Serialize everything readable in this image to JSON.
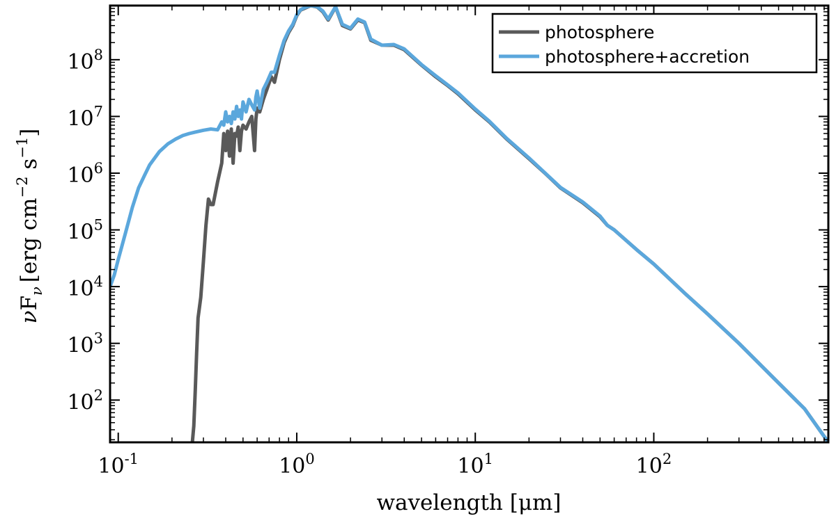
{
  "chart_data": {
    "type": "line",
    "title": "",
    "xlabel": "wavelength [μm]",
    "ylabel": "νF_ν [erg cm^-2 s^-1]",
    "xscale": "log",
    "yscale": "log",
    "xlim": [
      0.09,
      950
    ],
    "ylim": [
      18,
      900000000
    ],
    "xticks": [
      {
        "value": 0.1,
        "base": "10",
        "exp": "-1"
      },
      {
        "value": 1,
        "base": "10",
        "exp": "0"
      },
      {
        "value": 10,
        "base": "10",
        "exp": "1"
      },
      {
        "value": 100,
        "base": "10",
        "exp": "2"
      }
    ],
    "yticks": [
      {
        "value": 100,
        "base": "10",
        "exp": "2"
      },
      {
        "value": 1000,
        "base": "10",
        "exp": "3"
      },
      {
        "value": 10000,
        "base": "10",
        "exp": "4"
      },
      {
        "value": 100000,
        "base": "10",
        "exp": "5"
      },
      {
        "value": 1000000,
        "base": "10",
        "exp": "6"
      },
      {
        "value": 10000000,
        "base": "10",
        "exp": "7"
      },
      {
        "value": 100000000,
        "base": "10",
        "exp": "8"
      }
    ],
    "ylabel_parts": {
      "nu": "ν",
      "F": "F",
      "sub": "ν",
      "bracket_open": "[erg cm",
      "exp1": "−2",
      "s": " s",
      "exp2": "−1",
      "bracket_close": "]"
    },
    "legend_position": "top-right",
    "series": [
      {
        "name": "photosphere",
        "color": "#595959",
        "x": [
          0.26,
          0.265,
          0.27,
          0.275,
          0.28,
          0.29,
          0.3,
          0.31,
          0.32,
          0.33,
          0.34,
          0.36,
          0.38,
          0.39,
          0.4,
          0.41,
          0.42,
          0.43,
          0.44,
          0.45,
          0.46,
          0.47,
          0.48,
          0.49,
          0.5,
          0.52,
          0.54,
          0.56,
          0.58,
          0.59,
          0.6,
          0.62,
          0.65,
          0.68,
          0.72,
          0.75,
          0.8,
          0.85,
          0.9,
          0.95,
          1.0,
          1.05,
          1.1,
          1.2,
          1.3,
          1.4,
          1.5,
          1.65,
          1.8,
          2.0,
          2.2,
          2.4,
          2.6,
          3.0,
          3.5,
          4.0,
          5.0,
          6.0,
          7.0,
          8.0,
          10,
          12,
          15,
          20,
          25,
          30,
          40,
          50,
          55,
          60,
          80,
          100,
          150,
          200,
          300,
          500,
          700,
          950
        ],
        "y": [
          18,
          35,
          150,
          700,
          2800,
          6500,
          28000,
          120000,
          350000,
          280000,
          280000,
          700000,
          1500000,
          5000000,
          2500000,
          5500000,
          2000000,
          6000000,
          1500000,
          5000000,
          4500000,
          6500000,
          2500000,
          5500000,
          7000000,
          6000000,
          8000000,
          10000000,
          2500000,
          9000000,
          14000000,
          12000000,
          20000000,
          30000000,
          50000000,
          40000000,
          100000000,
          200000000,
          300000000,
          400000000,
          600000000,
          750000000,
          800000000,
          900000000,
          850000000,
          700000000,
          500000000,
          850000000,
          400000000,
          350000000,
          500000000,
          450000000,
          220000000,
          180000000,
          180000000,
          150000000,
          80000000,
          50000000,
          35000000,
          25000000,
          13000000,
          8000000,
          4000000,
          1800000,
          950000,
          550000,
          300000,
          170000,
          120000,
          100000,
          45000,
          25000,
          7500,
          3300,
          1000,
          200,
          70,
          18
        ]
      },
      {
        "name": "photosphere+accretion",
        "color": "#5ba7dc",
        "x": [
          0.09,
          0.095,
          0.1,
          0.11,
          0.12,
          0.13,
          0.14,
          0.15,
          0.17,
          0.19,
          0.21,
          0.23,
          0.25,
          0.27,
          0.3,
          0.33,
          0.36,
          0.38,
          0.39,
          0.4,
          0.41,
          0.42,
          0.43,
          0.44,
          0.45,
          0.46,
          0.47,
          0.48,
          0.49,
          0.5,
          0.52,
          0.54,
          0.56,
          0.58,
          0.59,
          0.6,
          0.62,
          0.65,
          0.68,
          0.72,
          0.75,
          0.8,
          0.85,
          0.9,
          0.95,
          1.0,
          1.05,
          1.1,
          1.2,
          1.3,
          1.4,
          1.5,
          1.65,
          1.8,
          2.0,
          2.2,
          2.4,
          2.6,
          3.0,
          3.5,
          4.0,
          5.0,
          6.0,
          7.0,
          8.0,
          10,
          12,
          15,
          20,
          25,
          30,
          40,
          50,
          55,
          60,
          80,
          100,
          150,
          200,
          300,
          500,
          700,
          950
        ],
        "y": [
          10000,
          16000,
          30000,
          90000,
          250000,
          550000,
          900000,
          1400000,
          2400000,
          3300000,
          4000000,
          4600000,
          5000000,
          5300000,
          5700000,
          6000000,
          5800000,
          8000000,
          7000000,
          12000000,
          8000000,
          10000000,
          7500000,
          12000000,
          9000000,
          15000000,
          10000000,
          13000000,
          9000000,
          18000000,
          12000000,
          20000000,
          16000000,
          13000000,
          22000000,
          28000000,
          14000000,
          30000000,
          40000000,
          60000000,
          60000000,
          120000000,
          220000000,
          320000000,
          420000000,
          620000000,
          760000000,
          820000000,
          900000000,
          860000000,
          720000000,
          520000000,
          860000000,
          420000000,
          360000000,
          520000000,
          460000000,
          230000000,
          180000000,
          185000000,
          155000000,
          82000000,
          52000000,
          36000000,
          26000000,
          13500000,
          8200000,
          4100000,
          1850000,
          960000,
          560000,
          310000,
          175000,
          120000,
          100000,
          45000,
          25000,
          7500,
          3300,
          1000,
          200,
          70,
          18
        ]
      }
    ]
  }
}
